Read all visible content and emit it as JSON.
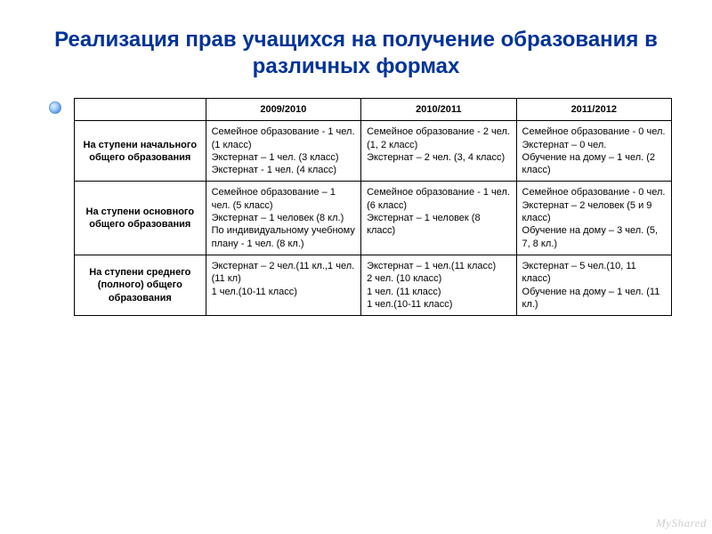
{
  "title": "Реализация прав учащихся на получение образования в различных формах",
  "table": {
    "columns": [
      "",
      "2009/2010",
      "2010/2011",
      "2011/2012"
    ],
    "col_widths_pct": [
      22,
      26,
      26,
      26
    ],
    "border_color": "#000000",
    "header_weight": "bold",
    "font_size_pt": 11,
    "rows": [
      {
        "label": "На ступени начального общего образования",
        "cells": [
          "Семейное образование - 1 чел. (1 класс)\nЭкстернат – 1 чел. (3 класс)\nЭкстернат - 1 чел. (4 класс)",
          "Семейное образование - 2 чел. (1, 2 класс)\nЭкстернат – 2 чел. (3, 4 класс)",
          "Семейное образование - 0 чел.\nЭкстернат – 0 чел.\nОбучение на дому – 1 чел. (2 класс)"
        ]
      },
      {
        "label": "На ступени основного общего образования",
        "cells": [
          "Семейное образование – 1 чел. (5 класс)\nЭкстернат – 1 человек (8 кл.)\nПо индивидуальному учебному плану - 1 чел. (8 кл.)",
          "Семейное образование - 1 чел. (6 класс)\nЭкстернат – 1 человек (8 класс)",
          "Семейное образование - 0 чел.\nЭкстернат – 2 человек (5 и 9 класс)\nОбучение на дому – 3 чел. (5, 7, 8 кл.)"
        ]
      },
      {
        "label": "На ступени среднего (полного) общего образования",
        "cells": [
          "Экстернат – 2 чел.(11 кл.,1 чел. (11 кл)\n1 чел.(10-11 класс)",
          "Экстернат – 1 чел.(11 класс)\n2 чел. (10 класс)\n1 чел. (11 класс)\n1 чел.(10-11 класс)",
          "Экстернат – 5 чел.(10, 11 класс)\nОбучение на дому – 1 чел. (11 кл.)"
        ]
      }
    ]
  },
  "colors": {
    "title": "#003399",
    "background": "#ffffff",
    "text": "#000000",
    "watermark": "#cfcfcf"
  },
  "watermark": "MyShared"
}
